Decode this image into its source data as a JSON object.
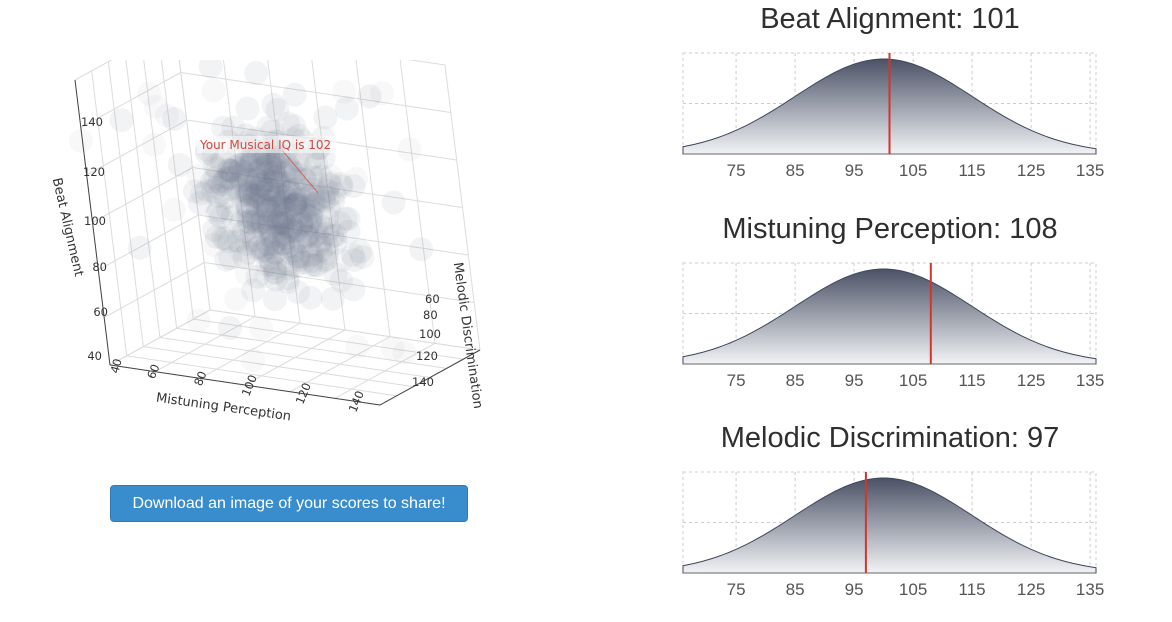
{
  "scatter3d": {
    "annotation": "Your Musical IQ is 102",
    "axes": {
      "x": {
        "label": "Mistuning Perception",
        "ticks": [
          "60",
          "80",
          "100",
          "120",
          "140"
        ]
      },
      "y": {
        "label": "Melodic Discrimination",
        "ticks": [
          "60",
          "80",
          "100",
          "120",
          "140"
        ]
      },
      "z": {
        "label": "Beat Alignment",
        "ticks": [
          "40",
          "60",
          "80",
          "100",
          "120",
          "140"
        ]
      },
      "x_low_tick": "40"
    },
    "point_color": "#737a8c"
  },
  "share_button": {
    "label": "Download an image of your scores to share!"
  },
  "chart_data": [
    {
      "type": "area",
      "title": "Beat Alignment: 101",
      "distribution": {
        "mean": 100,
        "sd": 15
      },
      "x_ticks": [
        75,
        85,
        95,
        105,
        115,
        125,
        135
      ],
      "xlim": [
        66,
        136
      ],
      "score": 101,
      "marker_color": "#d4352b",
      "fill_top_color": "#4b5266",
      "fill_bottom_color": "#f2f3f6"
    },
    {
      "type": "area",
      "title": "Mistuning Perception: 108",
      "distribution": {
        "mean": 100,
        "sd": 15
      },
      "x_ticks": [
        75,
        85,
        95,
        105,
        115,
        125,
        135
      ],
      "xlim": [
        66,
        136
      ],
      "score": 108,
      "marker_color": "#d4352b",
      "fill_top_color": "#4b5266",
      "fill_bottom_color": "#f2f3f6"
    },
    {
      "type": "area",
      "title": "Melodic Discrimination: 97",
      "distribution": {
        "mean": 100,
        "sd": 15
      },
      "x_ticks": [
        75,
        85,
        95,
        105,
        115,
        125,
        135
      ],
      "xlim": [
        66,
        136
      ],
      "score": 97,
      "marker_color": "#d4352b",
      "fill_top_color": "#4b5266",
      "fill_bottom_color": "#f2f3f6"
    }
  ]
}
